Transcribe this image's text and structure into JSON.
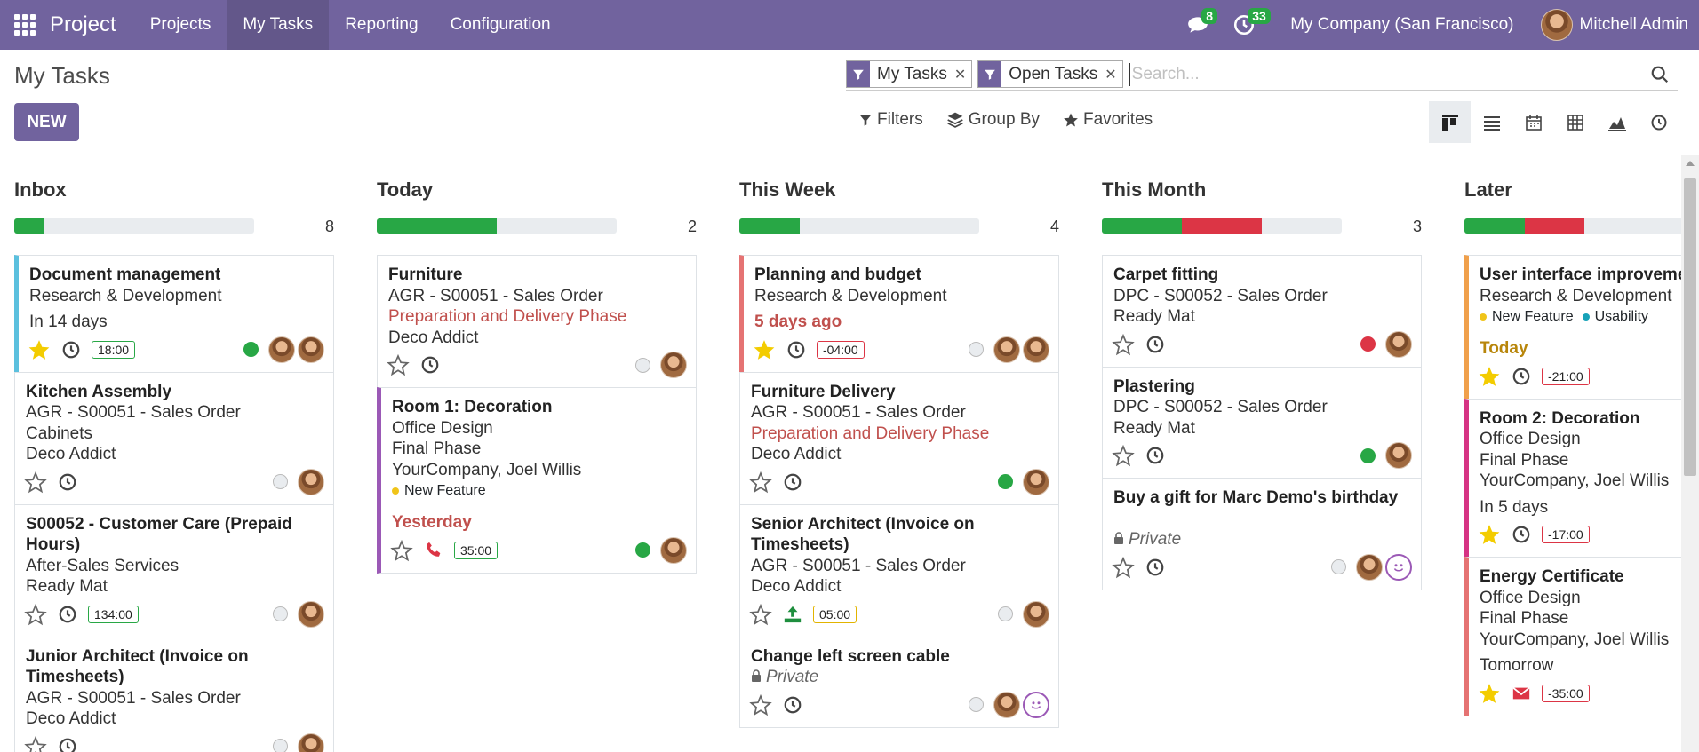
{
  "navbar": {
    "brand": "Project",
    "items": [
      "Projects",
      "My Tasks",
      "Reporting",
      "Configuration"
    ],
    "messages_count": "8",
    "activities_count": "33",
    "company": "My Company (San Francisco)",
    "user": "Mitchell Admin"
  },
  "control_panel": {
    "title": "My Tasks",
    "new_label": "NEW",
    "facets": [
      "My Tasks",
      "Open Tasks"
    ],
    "search_placeholder": "Search...",
    "filters_label": "Filters",
    "groupby_label": "Group By",
    "favorites_label": "Favorites",
    "views": [
      "kanban-icon",
      "list-icon",
      "calendar-icon",
      "pivot-icon",
      "graph-icon",
      "activity-icon"
    ]
  },
  "colors": {
    "brand": "#71639e",
    "green": "#28a745",
    "red": "#dc3545",
    "progress_bg": "#e9ecef"
  },
  "columns": [
    {
      "name": "Inbox",
      "count": "8",
      "progress": [
        {
          "color": "#28a745",
          "fraction": 0.125
        }
      ],
      "cards": [
        {
          "title": "Document management",
          "lines": [
            {
              "text": "Research & Development"
            }
          ],
          "due": "In 14 days",
          "due_style": "",
          "starred": true,
          "activity": "clock",
          "hours": "18:00",
          "hours_style": "",
          "state": "green",
          "avatars": 2,
          "border_color": "#5bc0de"
        },
        {
          "title": "Kitchen Assembly",
          "lines": [
            {
              "text": "AGR - S00051 - Sales Order"
            },
            {
              "text": "Cabinets"
            },
            {
              "text": "Deco Addict"
            }
          ],
          "starred": false,
          "activity": "clock",
          "state": "grey",
          "avatars": 1
        },
        {
          "title": "S00052 - Customer Care (Prepaid Hours)",
          "lines": [
            {
              "text": "After-Sales Services"
            },
            {
              "text": "Ready Mat"
            }
          ],
          "starred": false,
          "activity": "clock",
          "hours": "134:00",
          "hours_style": "",
          "state": "grey",
          "avatars": 1
        },
        {
          "title": "Junior Architect (Invoice on Timesheets)",
          "lines": [
            {
              "text": "AGR - S00051 - Sales Order"
            },
            {
              "text": "Deco Addict"
            }
          ],
          "starred": false,
          "activity": "clock",
          "state": "grey",
          "avatars": 1
        }
      ]
    },
    {
      "name": "Today",
      "count": "2",
      "progress": [
        {
          "color": "#28a745",
          "fraction": 0.5
        }
      ],
      "cards": [
        {
          "title": "Furniture",
          "lines": [
            {
              "text": "AGR - S00051 - Sales Order"
            },
            {
              "text": "Preparation and Delivery Phase",
              "style": "phase"
            },
            {
              "text": "Deco Addict"
            }
          ],
          "starred": false,
          "activity": "clock",
          "state": "grey",
          "avatars": 1
        },
        {
          "title": "Room 1: Decoration",
          "lines": [
            {
              "text": "Office Design"
            },
            {
              "text": "Final Phase"
            },
            {
              "text": "YourCompany, Joel Willis"
            }
          ],
          "tags": [
            {
              "name": "New Feature",
              "color": "#f0c419"
            }
          ],
          "due": "Yesterday",
          "due_style": "red",
          "starred": false,
          "activity": "phone",
          "hours": "35:00",
          "hours_style": "",
          "state": "green",
          "avatars": 1,
          "border_color": "#9b59b6"
        }
      ]
    },
    {
      "name": "This Week",
      "count": "4",
      "progress": [
        {
          "color": "#28a745",
          "fraction": 0.25
        }
      ],
      "cards": [
        {
          "title": "Planning and budget",
          "lines": [
            {
              "text": "Research & Development"
            }
          ],
          "due": "5 days ago",
          "due_style": "red",
          "starred": true,
          "activity": "clock",
          "hours": "-04:00",
          "hours_style": "red",
          "state": "grey",
          "avatars": 2,
          "border_color": "#e57373"
        },
        {
          "title": "Furniture Delivery",
          "lines": [
            {
              "text": "AGR - S00051 - Sales Order"
            },
            {
              "text": "Preparation and Delivery Phase",
              "style": "phase"
            },
            {
              "text": "Deco Addict"
            }
          ],
          "starred": false,
          "activity": "clock",
          "state": "green",
          "avatars": 1
        },
        {
          "title": "Senior Architect (Invoice on Timesheets)",
          "lines": [
            {
              "text": "AGR - S00051 - Sales Order"
            },
            {
              "text": "Deco Addict"
            }
          ],
          "starred": false,
          "activity": "upload",
          "hours": "05:00",
          "hours_style": "yellow",
          "state": "grey",
          "avatars": 1
        },
        {
          "title": "Change left screen cable",
          "lines": [
            {
              "text": "Private",
              "style": "private"
            }
          ],
          "starred": false,
          "activity": "clock",
          "state": "grey",
          "avatars": 1,
          "smiley": true
        }
      ]
    },
    {
      "name": "This Month",
      "count": "3",
      "progress": [
        {
          "color": "#28a745",
          "fraction": 0.333
        },
        {
          "color": "#dc3545",
          "fraction": 0.333
        }
      ],
      "cards": [
        {
          "title": "Carpet fitting",
          "lines": [
            {
              "text": "DPC - S00052 - Sales Order"
            },
            {
              "text": "Ready Mat"
            }
          ],
          "starred": false,
          "activity": "clock",
          "state": "red",
          "avatars": 1
        },
        {
          "title": "Plastering",
          "lines": [
            {
              "text": "DPC - S00052 - Sales Order"
            },
            {
              "text": "Ready Mat"
            }
          ],
          "starred": false,
          "activity": "clock",
          "state": "green",
          "avatars": 1
        },
        {
          "title": "Buy a gift for Marc Demo's birthday",
          "lines": [
            {
              "text": "Private",
              "style": "private"
            }
          ],
          "starred": false,
          "activity": "clock",
          "state": "grey",
          "avatars": 1,
          "smiley": true
        }
      ]
    },
    {
      "name": "Later",
      "count": "",
      "progress": [
        {
          "color": "#28a745",
          "fraction": 0.25
        },
        {
          "color": "#dc3545",
          "fraction": 0.25
        }
      ],
      "cards": [
        {
          "title": "User interface improvements",
          "lines": [
            {
              "text": "Research & Development"
            }
          ],
          "tags": [
            {
              "name": "New Feature",
              "color": "#f0c419"
            },
            {
              "name": "Usability",
              "color": "#17a2b8"
            }
          ],
          "due": "Today",
          "due_style": "orange",
          "starred": true,
          "activity": "clock",
          "hours": "-21:00",
          "hours_style": "red",
          "avatars": 0,
          "border_color": "#f0a04b"
        },
        {
          "title": "Room 2: Decoration",
          "lines": [
            {
              "text": "Office Design"
            },
            {
              "text": "Final Phase"
            },
            {
              "text": "YourCompany, Joel Willis"
            }
          ],
          "due": "In 5 days",
          "due_style": "",
          "starred": true,
          "activity": "clock",
          "hours": "-17:00",
          "hours_style": "red",
          "avatars": 0,
          "border_color": "#d63384"
        },
        {
          "title": "Energy Certificate",
          "lines": [
            {
              "text": "Office Design"
            },
            {
              "text": "Final Phase"
            },
            {
              "text": "YourCompany, Joel Willis"
            }
          ],
          "due": "Tomorrow",
          "due_style": "",
          "starred": true,
          "activity": "email",
          "hours": "-35:00",
          "hours_style": "red",
          "avatars": 0,
          "border_color": "#e57373"
        }
      ]
    }
  ]
}
